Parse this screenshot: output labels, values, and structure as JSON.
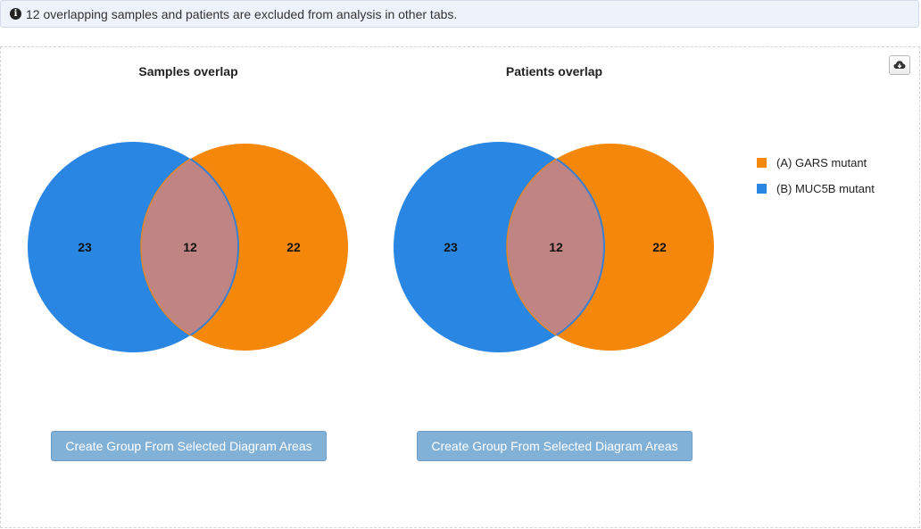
{
  "banner": {
    "icon": "info-circle-icon",
    "text": "12 overlapping samples and patients are excluded from analysis in other tabs."
  },
  "toolbar": {
    "download_icon": "cloud-download-icon"
  },
  "colors": {
    "group_a": "#f5870a",
    "group_b": "#2986e2",
    "overlap": "#c08582",
    "button": "#82b1d7"
  },
  "legend": {
    "items": [
      {
        "prefix": "(A)",
        "label": "GARS mutant",
        "color": "#f5870a"
      },
      {
        "prefix": "(B)",
        "label": "MUC5B mutant",
        "color": "#2986e2"
      }
    ]
  },
  "chart_data": [
    {
      "type": "venn",
      "title": "Samples overlap",
      "sets": [
        "(A) GARS mutant",
        "(B) MUC5B mutant"
      ],
      "only_b": 23,
      "overlap": 12,
      "only_a": 22,
      "button_label": "Create Group From Selected Diagram Areas"
    },
    {
      "type": "venn",
      "title": "Patients overlap",
      "sets": [
        "(A) GARS mutant",
        "(B) MUC5B mutant"
      ],
      "only_b": 23,
      "overlap": 12,
      "only_a": 22,
      "button_label": "Create Group From Selected Diagram Areas"
    }
  ]
}
